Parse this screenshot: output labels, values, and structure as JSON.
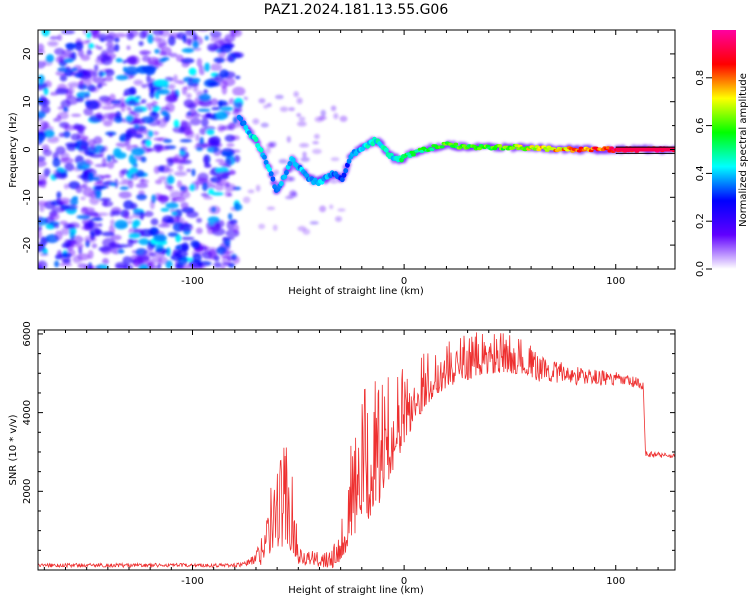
{
  "title": "PAZ1.2024.181.13.55.G06",
  "chart_data": [
    {
      "type": "heatmap",
      "xlabel": "Height of straight line (km)",
      "ylabel": "Frequency (Hz)",
      "xlim": [
        -173,
        128
      ],
      "ylim": [
        -25,
        25
      ],
      "xticks": [
        -100,
        0,
        100
      ],
      "yticks": [
        -20,
        -10,
        0,
        10,
        20
      ],
      "colorbar": {
        "label": "Normalized spectral amplitude",
        "range": [
          0,
          1
        ],
        "ticks": [
          0.0,
          0.2,
          0.4,
          0.6,
          0.8
        ],
        "tick_labels": [
          "0.0",
          "0.2",
          "0.4",
          "0.6",
          "0.8"
        ],
        "colormap": [
          "#ffffff",
          "#6000ff",
          "#0000ff",
          "#00ffff",
          "#00ff00",
          "#ffff00",
          "#ff0000",
          "#ff00a0"
        ]
      },
      "noise_region_x": [
        -173,
        -78
      ],
      "ridge": {
        "x": [
          -78,
          -74,
          -70,
          -66,
          -63,
          -60,
          -57,
          -53,
          -49,
          -45,
          -41,
          -37,
          -33,
          -29,
          -25,
          -21,
          -17,
          -13,
          -9,
          -5,
          -1,
          3,
          10,
          20,
          30,
          40,
          50,
          60,
          70,
          80,
          90,
          100,
          110,
          128
        ],
        "y": [
          7,
          4,
          2,
          -2,
          -5,
          -9,
          -6,
          -2,
          -4,
          -6,
          -7,
          -6,
          -5,
          -6,
          -1,
          0,
          1,
          2,
          0,
          -2,
          -2,
          -1,
          0,
          1,
          0.5,
          0.5,
          0.5,
          0.3,
          0.2,
          0,
          0,
          0,
          0,
          0
        ],
        "amplitude": [
          0.35,
          0.4,
          0.45,
          0.4,
          0.4,
          0.35,
          0.4,
          0.4,
          0.4,
          0.35,
          0.4,
          0.4,
          0.35,
          0.3,
          0.35,
          0.4,
          0.45,
          0.45,
          0.45,
          0.45,
          0.5,
          0.55,
          0.55,
          0.6,
          0.6,
          0.6,
          0.65,
          0.7,
          0.75,
          0.8,
          0.85,
          0.9,
          0.95,
          0.95
        ]
      },
      "reference_line_y": [
        0.5,
        -0.8
      ]
    },
    {
      "type": "line",
      "xlabel": "Height of straight line (km)",
      "ylabel": "SNR (10 * v/v)",
      "xlim": [
        -173,
        128
      ],
      "ylim": [
        0,
        6100
      ],
      "xticks": [
        -100,
        0,
        100
      ],
      "yticks": [
        2000,
        4000,
        6000
      ],
      "color": "#ee3030",
      "envelope": {
        "x": [
          -173,
          -80,
          -75,
          -70,
          -65,
          -60,
          -55,
          -50,
          -45,
          -40,
          -35,
          -30,
          -25,
          -20,
          -15,
          -10,
          -5,
          0,
          10,
          20,
          30,
          40,
          50,
          60,
          70,
          80,
          90,
          100,
          110,
          113,
          114,
          128
        ],
        "mean": [
          120,
          120,
          150,
          300,
          700,
          1300,
          1500,
          400,
          300,
          250,
          350,
          500,
          1500,
          2200,
          2400,
          2800,
          3300,
          3800,
          4600,
          5000,
          5200,
          5300,
          5300,
          5200,
          5050,
          4950,
          4900,
          4850,
          4750,
          4650,
          2950,
          2900
        ],
        "spread": [
          50,
          50,
          60,
          200,
          600,
          1200,
          1500,
          250,
          200,
          200,
          300,
          500,
          1300,
          1700,
          1800,
          1500,
          1200,
          1000,
          700,
          600,
          600,
          550,
          500,
          400,
          300,
          250,
          200,
          180,
          150,
          150,
          80,
          70
        ]
      }
    }
  ]
}
